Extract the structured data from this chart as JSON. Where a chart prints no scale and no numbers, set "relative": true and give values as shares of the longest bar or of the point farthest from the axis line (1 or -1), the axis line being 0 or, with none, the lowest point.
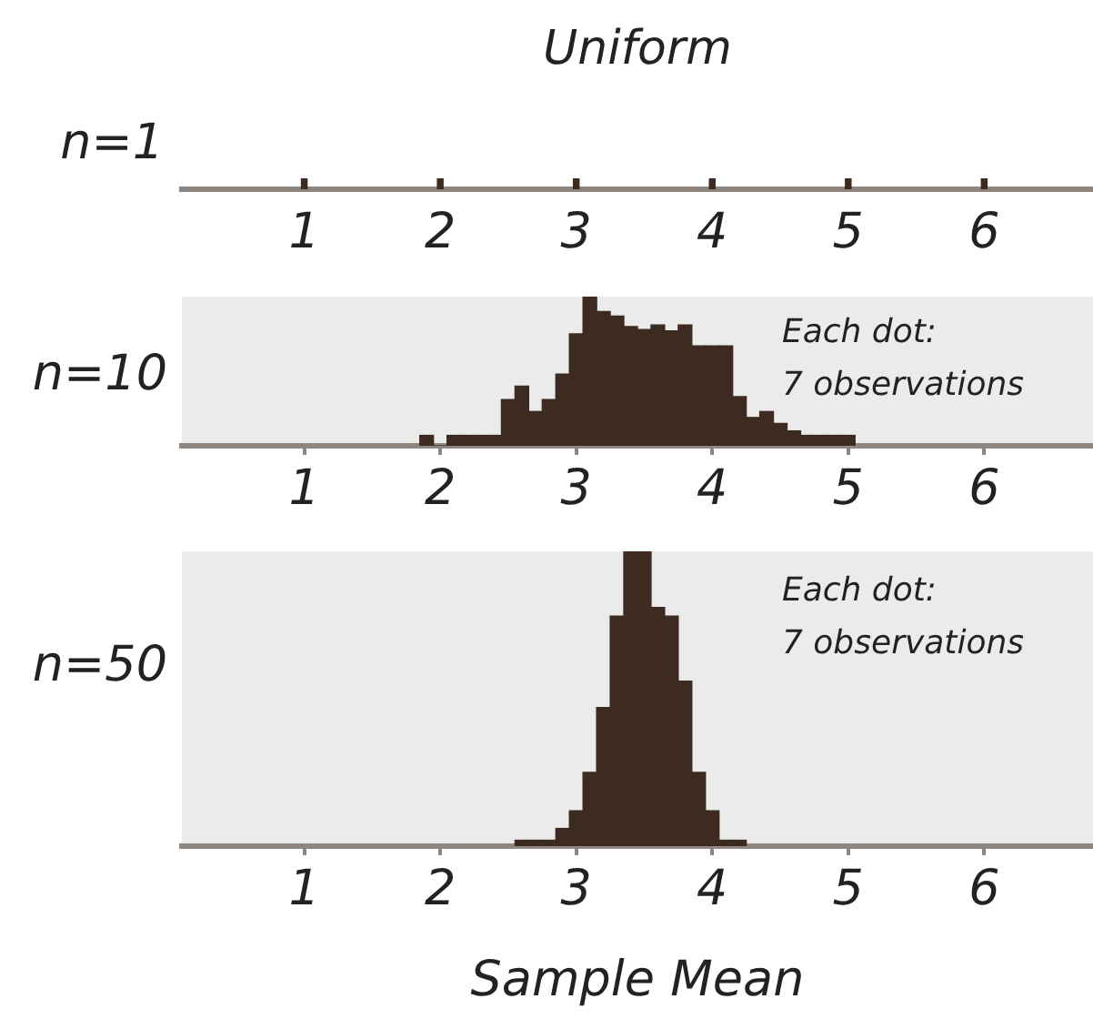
{
  "chart_data": [
    {
      "type": "bar",
      "title": "Uniform",
      "ylabel": "n=1",
      "x": [
        1,
        2,
        3,
        4,
        5,
        6
      ],
      "values": [
        1,
        1,
        1,
        1,
        1,
        1
      ],
      "relative": true,
      "color": "#3d2b22",
      "xlim": [
        0.1,
        6.8
      ],
      "xticks": [
        1,
        2,
        3,
        4,
        5,
        6
      ]
    },
    {
      "type": "bar",
      "ylabel": "n=10",
      "x": [
        1.9,
        2.0,
        2.1,
        2.2,
        2.3,
        2.4,
        2.5,
        2.6,
        2.7,
        2.8,
        2.9,
        3.0,
        3.1,
        3.2,
        3.3,
        3.4,
        3.5,
        3.6,
        3.7,
        3.8,
        3.9,
        4.0,
        4.1,
        4.2,
        4.3,
        4.4,
        4.5,
        4.6,
        4.7,
        4.8,
        4.9,
        5.0
      ],
      "values": [
        0.07,
        0,
        0.07,
        0.07,
        0.07,
        0.07,
        0.31,
        0.4,
        0.23,
        0.31,
        0.48,
        0.75,
        1,
        0.9,
        0.87,
        0.8,
        0.78,
        0.81,
        0.77,
        0.81,
        0.67,
        0.67,
        0.67,
        0.33,
        0.19,
        0.23,
        0.15,
        0.1,
        0.07,
        0.07,
        0.07,
        0.07
      ],
      "relative": true,
      "color": "#3d2b22",
      "xlim": [
        0.1,
        6.8
      ],
      "xticks": [
        1,
        2,
        3,
        4,
        5,
        6
      ],
      "annotations": [
        "Each dot:\n7 observations"
      ]
    },
    {
      "type": "bar",
      "ylabel": "n=50",
      "xlabel": "Sample Mean",
      "x": [
        2.6,
        2.7,
        2.8,
        2.9,
        3.0,
        3.1,
        3.2,
        3.3,
        3.4,
        3.5,
        3.6,
        3.7,
        3.8,
        3.9,
        4.0,
        4.1,
        4.2
      ],
      "values": [
        0.02,
        0.02,
        0.02,
        0.06,
        0.12,
        0.25,
        0.47,
        0.78,
        1,
        1,
        0.81,
        0.78,
        0.56,
        0.25,
        0.12,
        0.02,
        0.02
      ],
      "relative": true,
      "color": "#3d2b22",
      "xlim": [
        0.1,
        6.8
      ],
      "xticks": [
        1,
        2,
        3,
        4,
        5,
        6
      ],
      "annotations": [
        "Each dot:\n7 observations"
      ]
    }
  ]
}
